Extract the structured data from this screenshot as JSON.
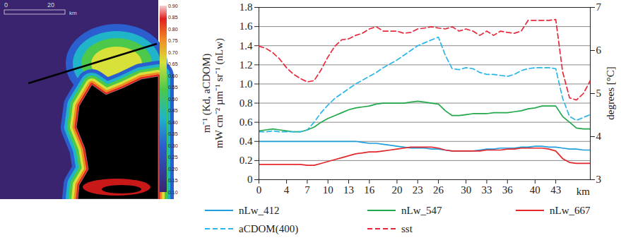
{
  "chart_data": {
    "type": "line",
    "x_label": "km",
    "y_label": [
      "m⁻¹ (Kd, aCDOM)",
      "mW cm⁻² µm⁻¹ sr⁻¹ (nLw)"
    ],
    "y2_label": "degrees [°C]",
    "x": [
      0,
      1,
      2,
      3,
      4,
      5,
      6,
      7,
      8,
      9,
      10,
      11,
      12,
      13,
      14,
      15,
      16,
      17,
      18,
      19,
      20,
      21,
      22,
      23,
      24,
      25,
      26,
      27,
      28,
      29,
      30,
      31,
      32,
      33,
      34,
      35,
      36,
      37,
      38,
      39,
      40,
      41,
      42,
      43,
      44,
      45,
      46,
      47,
      48
    ],
    "xlim": [
      0,
      48
    ],
    "xticks": [
      0,
      4,
      7,
      10,
      13,
      16,
      20,
      23,
      26,
      30,
      33,
      36,
      40,
      43
    ],
    "ylim": [
      0,
      1.8
    ],
    "yticks": [
      0,
      0.2,
      0.4,
      0.6,
      0.8,
      {
        "value": 1,
        "label": "1.0"
      },
      1.2,
      1.4,
      1.6,
      1.8
    ],
    "y2lim": [
      3,
      7
    ],
    "y2ticks": [
      3,
      4,
      5,
      6,
      7
    ],
    "grid": true,
    "legend": "bottom",
    "series": [
      {
        "name": "nLw_412",
        "color": "#1e9fdc",
        "line_style": "solid",
        "values": [
          0.4,
          0.4,
          0.4,
          0.4,
          0.4,
          0.4,
          0.4,
          0.4,
          0.4,
          0.4,
          0.4,
          0.4,
          0.4,
          0.4,
          0.4,
          0.39,
          0.38,
          0.38,
          0.37,
          0.36,
          0.35,
          0.34,
          0.33,
          0.33,
          0.33,
          0.32,
          0.32,
          0.31,
          0.3,
          0.3,
          0.3,
          0.3,
          0.31,
          0.32,
          0.32,
          0.33,
          0.33,
          0.33,
          0.34,
          0.34,
          0.35,
          0.35,
          0.34,
          0.34,
          0.33,
          0.32,
          0.32,
          0.31,
          0.31
        ]
      },
      {
        "name": "nLw_547",
        "color": "#22a84a",
        "line_style": "solid",
        "values": [
          0.51,
          0.52,
          0.53,
          0.52,
          0.51,
          0.5,
          0.5,
          0.52,
          0.55,
          0.6,
          0.64,
          0.67,
          0.7,
          0.73,
          0.75,
          0.76,
          0.77,
          0.79,
          0.8,
          0.8,
          0.8,
          0.8,
          0.81,
          0.82,
          0.81,
          0.8,
          0.79,
          0.72,
          0.67,
          0.67,
          0.68,
          0.69,
          0.69,
          0.69,
          0.7,
          0.7,
          0.7,
          0.71,
          0.72,
          0.74,
          0.75,
          0.77,
          0.77,
          0.77,
          0.66,
          0.6,
          0.54,
          0.53,
          0.53
        ]
      },
      {
        "name": "nLw_667",
        "color": "#e3262b",
        "line_style": "solid",
        "values": [
          0.16,
          0.16,
          0.16,
          0.16,
          0.16,
          0.16,
          0.16,
          0.15,
          0.15,
          0.17,
          0.19,
          0.21,
          0.23,
          0.25,
          0.27,
          0.28,
          0.29,
          0.29,
          0.3,
          0.31,
          0.32,
          0.33,
          0.34,
          0.34,
          0.34,
          0.34,
          0.33,
          0.31,
          0.3,
          0.3,
          0.3,
          0.3,
          0.3,
          0.31,
          0.31,
          0.31,
          0.32,
          0.32,
          0.33,
          0.33,
          0.33,
          0.33,
          0.32,
          0.3,
          0.22,
          0.18,
          0.17,
          0.17,
          0.17
        ]
      },
      {
        "name": "aCDOM(400)",
        "color": "#29b6e8",
        "line_style": "dashed",
        "values": [
          0.5,
          0.5,
          0.51,
          0.5,
          0.5,
          0.5,
          0.5,
          0.52,
          0.6,
          0.7,
          0.78,
          0.85,
          0.9,
          0.95,
          1.0,
          1.04,
          1.08,
          1.12,
          1.17,
          1.21,
          1.25,
          1.3,
          1.35,
          1.4,
          1.43,
          1.46,
          1.49,
          1.3,
          1.16,
          1.15,
          1.17,
          1.16,
          1.12,
          1.1,
          1.1,
          1.09,
          1.08,
          1.1,
          1.14,
          1.16,
          1.17,
          1.17,
          1.17,
          1.16,
          0.85,
          0.66,
          0.62,
          0.65,
          0.68
        ]
      },
      {
        "name": "sst",
        "color": "#e8283a",
        "line_style": "dashed",
        "axis": "y2",
        "values": [
          6.1,
          6.05,
          5.95,
          5.8,
          5.6,
          5.45,
          5.35,
          5.27,
          5.3,
          5.55,
          5.85,
          6.1,
          6.25,
          6.27,
          6.35,
          6.4,
          6.5,
          6.55,
          6.45,
          6.45,
          6.45,
          6.4,
          6.42,
          6.5,
          6.52,
          6.55,
          6.52,
          6.5,
          6.55,
          6.45,
          6.5,
          6.45,
          6.35,
          6.45,
          6.35,
          6.45,
          6.42,
          6.4,
          6.45,
          6.7,
          6.7,
          6.7,
          6.7,
          6.72,
          5.5,
          4.9,
          4.85,
          5.0,
          5.3
        ]
      }
    ]
  },
  "map": {
    "scale_bar": {
      "ticks": [
        0,
        20
      ],
      "unit": "km"
    },
    "colorbar": {
      "range": [
        0.1,
        0.9
      ],
      "ticks": [
        {
          "value": 0.9,
          "label": "0.90"
        },
        0.85,
        {
          "value": 0.8,
          "label": "0.80"
        },
        0.75,
        {
          "value": 0.7,
          "label": "0.70"
        },
        0.65,
        {
          "value": 0.6,
          "label": "0.60"
        },
        0.55,
        {
          "value": 0.5,
          "label": "0.50"
        },
        0.45,
        {
          "value": 0.4,
          "label": "0.40"
        },
        0.35,
        {
          "value": 0.3,
          "label": "0.30"
        },
        0.25,
        {
          "value": 0.2,
          "label": "0.20"
        },
        0.15,
        {
          "value": 0.1,
          "label": "0.10"
        }
      ]
    }
  }
}
